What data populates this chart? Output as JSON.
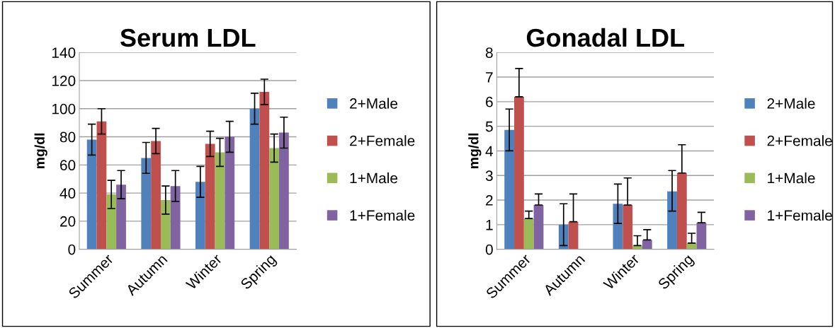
{
  "chart_data": [
    {
      "type": "bar",
      "title": "Serum LDL",
      "ylabel": "mg/dl",
      "categories": [
        "Summer",
        "Autumn",
        "Winter",
        "Spring"
      ],
      "ylim": [
        0,
        140
      ],
      "yticks": [
        0,
        20,
        40,
        60,
        80,
        100,
        120,
        140
      ],
      "grid": "y",
      "legend": "right",
      "series": [
        {
          "name": "2+Male",
          "color": "#4f81bd",
          "values": [
            78,
            65,
            48,
            100
          ],
          "errors": [
            11,
            11,
            11,
            11
          ]
        },
        {
          "name": "2+Female",
          "color": "#c0504d",
          "values": [
            91,
            77,
            75,
            112
          ],
          "errors": [
            9,
            9,
            9,
            9
          ]
        },
        {
          "name": "1+Male",
          "color": "#9bbb59",
          "values": [
            39,
            35,
            69,
            72
          ],
          "errors": [
            10,
            10,
            10,
            10
          ]
        },
        {
          "name": "1+Female",
          "color": "#8064a2",
          "values": [
            46,
            45,
            80,
            83
          ],
          "errors": [
            10,
            11,
            11,
            11
          ]
        }
      ]
    },
    {
      "type": "bar",
      "title": "Gonadal LDL",
      "ylabel": "mg/dl",
      "categories": [
        "Summer",
        "Autumn",
        "Winter",
        "Spring"
      ],
      "ylim": [
        0,
        8
      ],
      "yticks": [
        0,
        1,
        2,
        3,
        4,
        5,
        6,
        7,
        8
      ],
      "grid": "y",
      "legend": "right",
      "series": [
        {
          "name": "2+Male",
          "color": "#4f81bd",
          "values": [
            4.85,
            1.0,
            1.85,
            2.35
          ],
          "errors": [
            0.85,
            0.85,
            0.8,
            [
              1.55,
              3.2
            ]
          ]
        },
        {
          "name": "2+Female",
          "color": "#c0504d",
          "values": [
            6.2,
            1.12,
            1.8,
            3.1
          ],
          "errors": [
            [
              6.2,
              7.35
            ],
            [
              1.12,
              2.25
            ],
            [
              1.8,
              2.9
            ],
            [
              3.1,
              4.25
            ]
          ]
        },
        {
          "name": "1+Male",
          "color": "#9bbb59",
          "values": [
            1.25,
            null,
            0.15,
            0.25
          ],
          "errors": [
            [
              1.25,
              1.55
            ],
            null,
            [
              0.15,
              0.55
            ],
            [
              0.25,
              0.65
            ]
          ]
        },
        {
          "name": "1+Female",
          "color": "#8064a2",
          "values": [
            1.8,
            null,
            0.38,
            1.08
          ],
          "errors": [
            [
              1.8,
              2.25
            ],
            null,
            [
              0.38,
              0.8
            ],
            [
              1.08,
              1.5
            ]
          ]
        }
      ]
    }
  ]
}
